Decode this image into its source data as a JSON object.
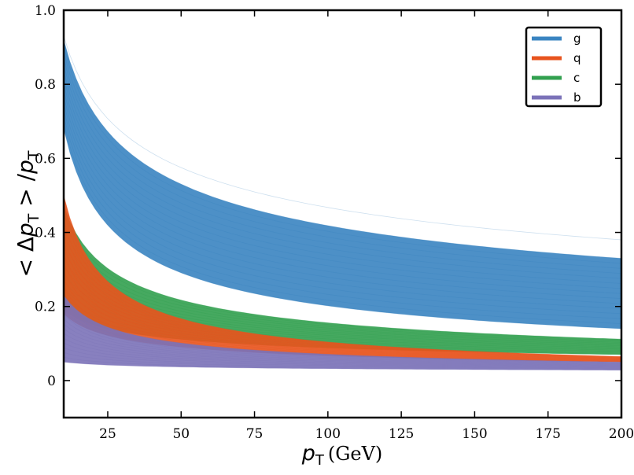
{
  "chart_data": {
    "type": "line",
    "title": "",
    "xlabel": {
      "symbol": "p",
      "subscript": "T",
      "unit": "(GeV)"
    },
    "ylabel": {
      "prefix": "< Δ",
      "symbol": "p",
      "subscript": "T",
      "middle": " > /",
      "symbol2": "p",
      "subscript2": "T"
    },
    "xlim": [
      10,
      200
    ],
    "ylim": [
      -0.1,
      1.0
    ],
    "xticks": [
      25,
      50,
      75,
      100,
      125,
      150,
      175,
      200
    ],
    "xtick_labels": [
      "25",
      "50",
      "75",
      "100",
      "125",
      "150",
      "175",
      "200"
    ],
    "yticks": [
      0,
      0.2,
      0.4,
      0.6,
      0.8,
      1.0
    ],
    "ytick_labels": [
      "0",
      "0.2",
      "0.4",
      "0.6",
      "0.8",
      "1.0"
    ],
    "grid": false,
    "legend_position": "top-right",
    "series": [
      {
        "name": "g",
        "color": "#3a84c1",
        "band_low": {
          "x": [
            10,
            200
          ],
          "y": [
            0.68,
            0.14
          ]
        },
        "band_high": {
          "x": [
            10,
            200
          ],
          "y": [
            0.92,
            0.33
          ]
        },
        "outlier": {
          "x": [
            10,
            200
          ],
          "y": [
            0.93,
            0.38
          ]
        }
      },
      {
        "name": "c",
        "color": "#32a04f",
        "band_low": {
          "x": [
            10,
            200
          ],
          "y": [
            0.19,
            0.07
          ]
        },
        "band_high": {
          "x": [
            10,
            200
          ],
          "y": [
            0.47,
            0.112
          ]
        }
      },
      {
        "name": "q",
        "color": "#e8541e",
        "band_low": {
          "x": [
            10,
            200
          ],
          "y": [
            0.18,
            0.05
          ]
        },
        "band_high": {
          "x": [
            10,
            200
          ],
          "y": [
            0.5,
            0.065
          ]
        }
      },
      {
        "name": "b",
        "color": "#7b72b8",
        "band_low": {
          "x": [
            10,
            200
          ],
          "y": [
            0.05,
            0.028
          ]
        },
        "band_high": {
          "x": [
            10,
            200
          ],
          "y": [
            0.23,
            0.05
          ]
        }
      }
    ],
    "legend_order": [
      "g",
      "q",
      "c",
      "b"
    ]
  }
}
